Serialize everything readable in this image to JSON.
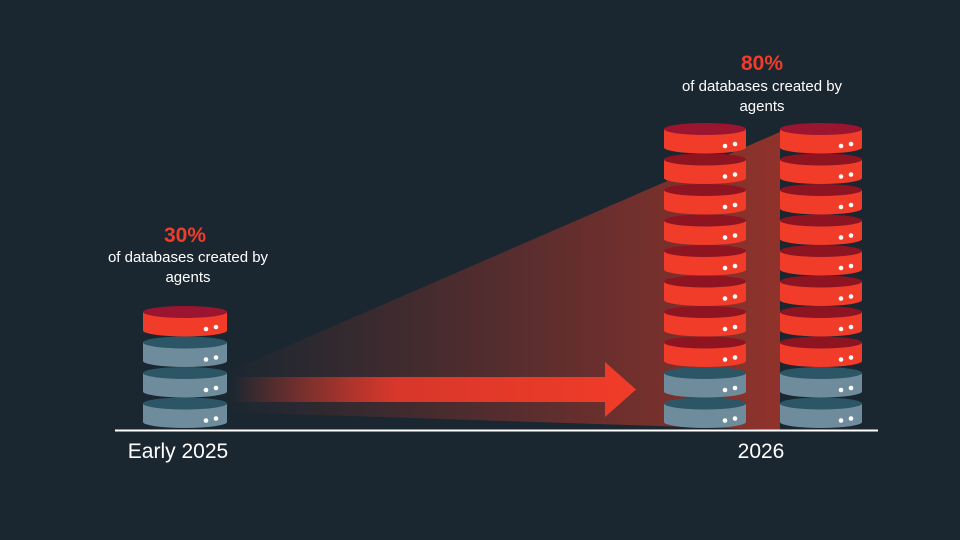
{
  "chart_data": {
    "type": "database-stacks",
    "categories": [
      "Early 2025",
      "2026"
    ],
    "values": [
      30,
      80
    ],
    "value_labels": [
      "30%",
      "80%"
    ],
    "annotations": [
      "of databases created by agents",
      "of databases created by agents"
    ],
    "colors": {
      "highlight": "#f03c28",
      "base": "#6e8c9c"
    }
  }
}
